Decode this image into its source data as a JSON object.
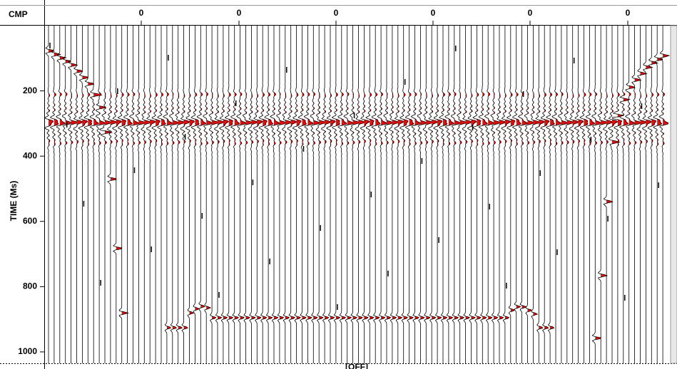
{
  "window": {
    "header_label": "CMP",
    "header_ticks": [
      "0",
      "0",
      "0",
      "0",
      "0",
      "0"
    ],
    "y_axis_label": "TIME (Ms)",
    "ylim": [
      0,
      1035
    ],
    "yticks": [
      200,
      400,
      600,
      800,
      1000
    ],
    "bottom_label": "[OFF]"
  }
}
